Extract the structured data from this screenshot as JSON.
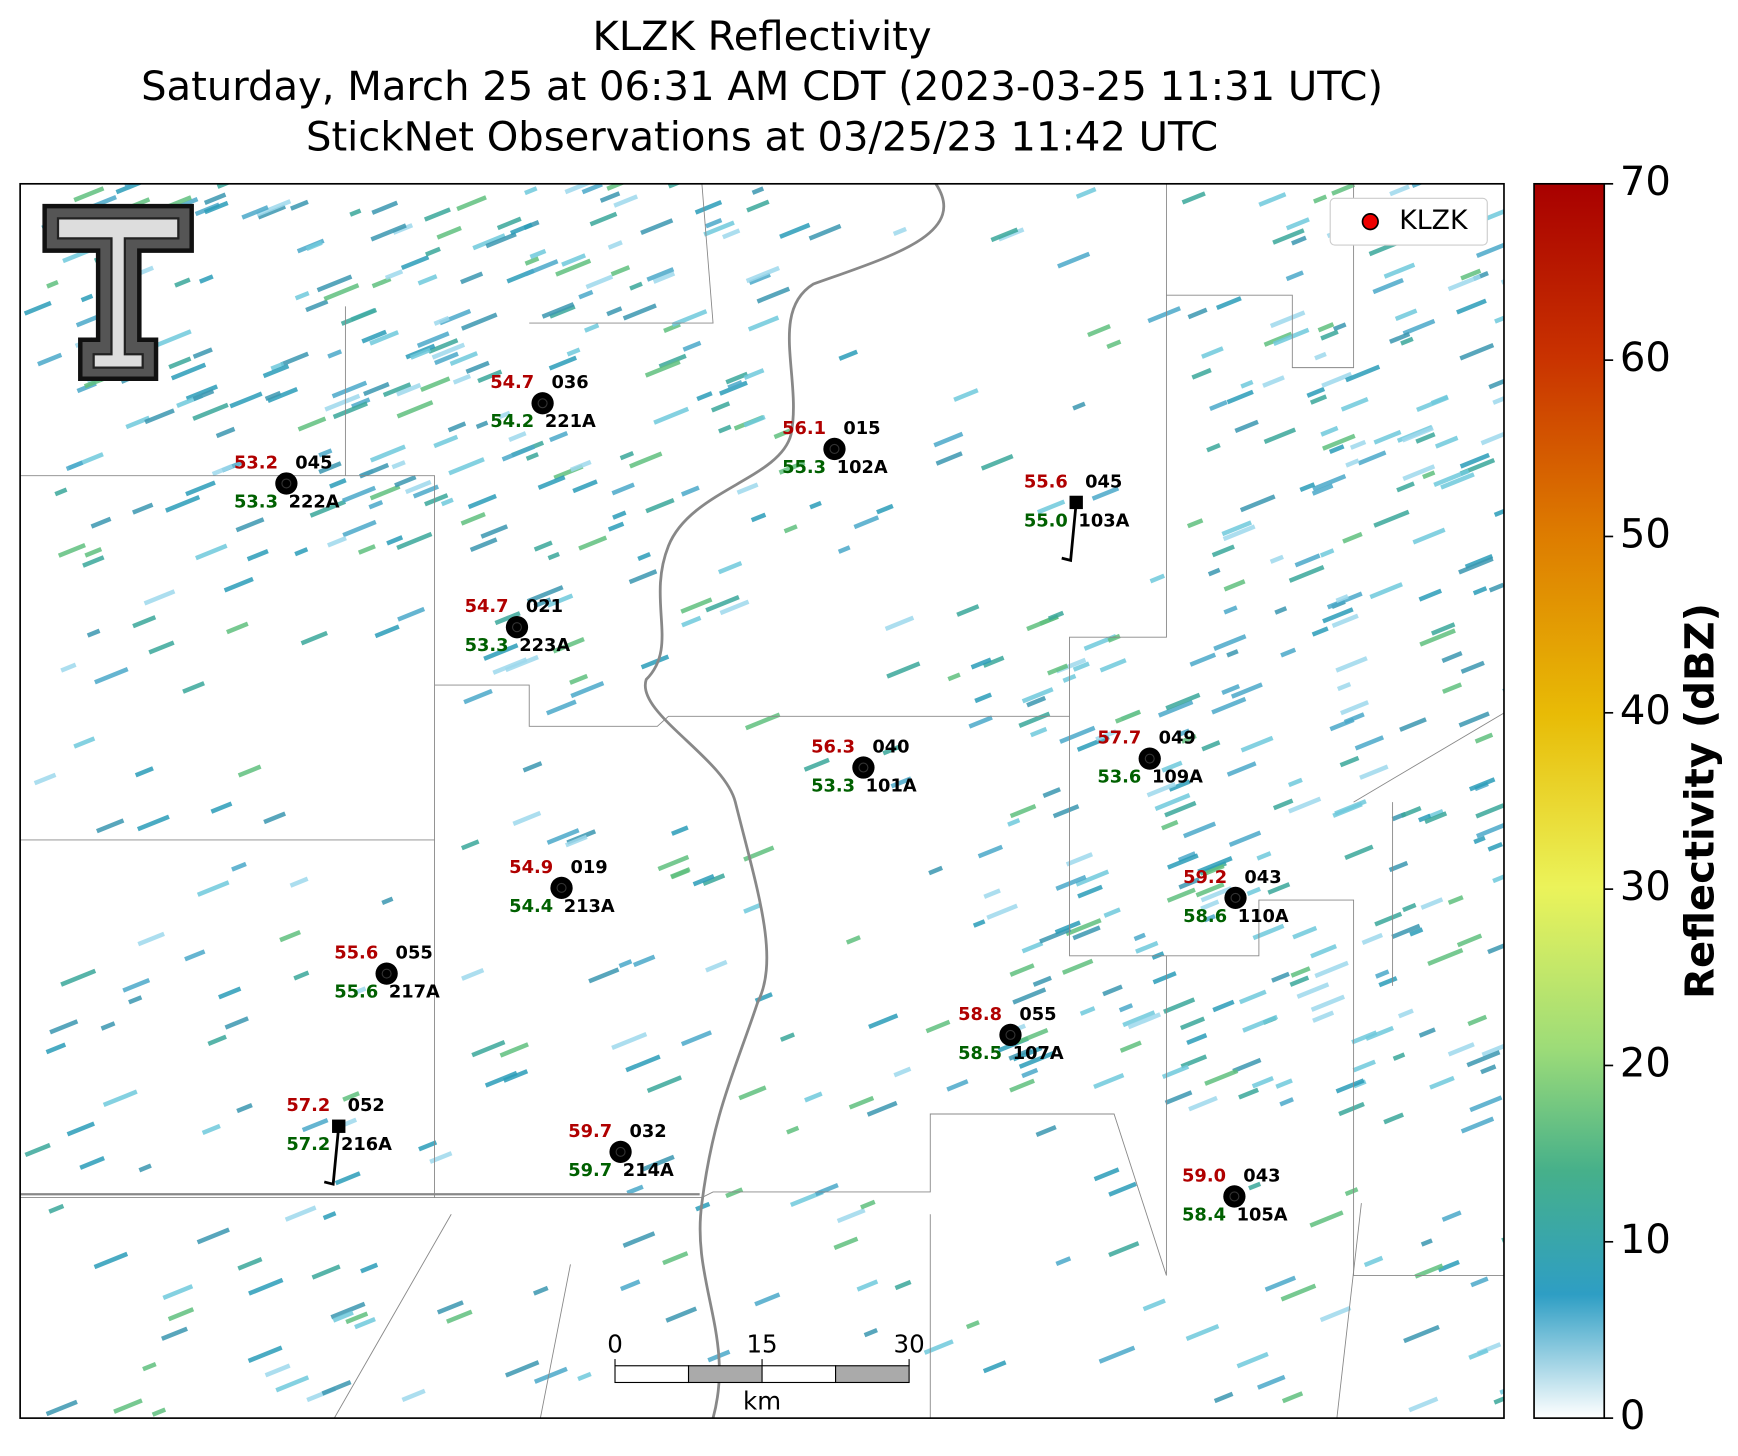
{
  "title": [
    "KLZK Reflectivity",
    "Saturday, March 25 at 06:31 AM CDT (2023-03-25 11:31 UTC)",
    "StickNet Observations at 03/25/23 11:42 UTC"
  ],
  "legend": "KLZK",
  "stations": [
    {
      "id": "221A",
      "temperature": "54.7",
      "dewpoint": "54.2",
      "direction": "036"
    },
    {
      "id": "222A",
      "temperature": "53.2",
      "dewpoint": "53.3",
      "direction": "045"
    },
    {
      "id": "102A",
      "temperature": "56.1",
      "dewpoint": "55.3",
      "direction": "015"
    },
    {
      "id": "103A",
      "temperature": "55.6",
      "dewpoint": "55.0",
      "direction": "045"
    },
    {
      "id": "223A",
      "temperature": "54.7",
      "dewpoint": "53.3",
      "direction": "021"
    },
    {
      "id": "101A",
      "temperature": "56.3",
      "dewpoint": "53.3",
      "direction": "040"
    },
    {
      "id": "109A",
      "temperature": "57.7",
      "dewpoint": "53.6",
      "direction": "049"
    },
    {
      "id": "213A",
      "temperature": "54.9",
      "dewpoint": "54.4",
      "direction": "019"
    },
    {
      "id": "110A",
      "temperature": "59.2",
      "dewpoint": "58.6",
      "direction": "043"
    },
    {
      "id": "217A",
      "temperature": "55.6",
      "dewpoint": "55.6",
      "direction": "055"
    },
    {
      "id": "107A",
      "temperature": "58.8",
      "dewpoint": "58.5",
      "direction": "055"
    },
    {
      "id": "216A",
      "temperature": "57.2",
      "dewpoint": "57.2",
      "direction": "052"
    },
    {
      "id": "214A",
      "temperature": "59.7",
      "dewpoint": "59.7",
      "direction": "032"
    },
    {
      "id": "105A",
      "temperature": "59.0",
      "dewpoint": "58.4",
      "direction": "043"
    }
  ],
  "colorbar": {
    "label": "Reflectivity (dBZ)",
    "lim": [
      0,
      70
    ],
    "ticks": [
      0,
      10,
      20,
      30,
      40,
      50,
      60,
      70
    ]
  },
  "scale_bar": {
    "lim": [
      0,
      30
    ],
    "ticks": [
      0,
      15,
      30
    ],
    "unit": "km"
  }
}
